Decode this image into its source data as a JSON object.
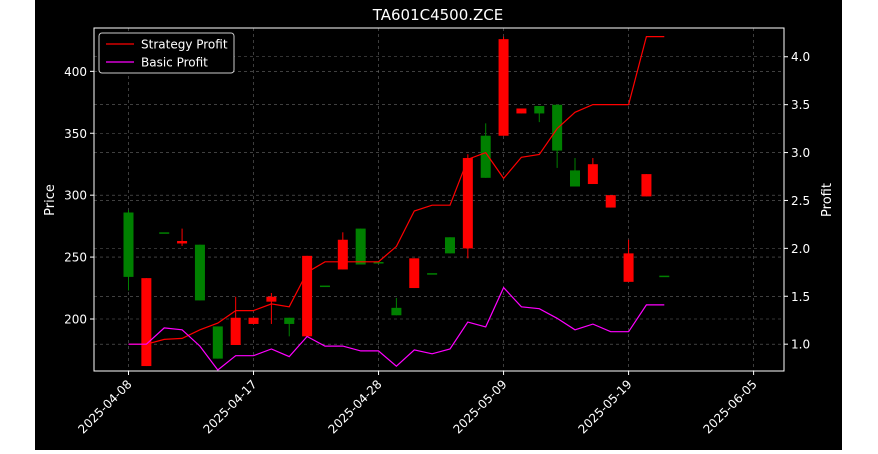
{
  "chart_data": {
    "type": "candlestick",
    "title": "TA601C4500.ZCE",
    "ylabel_left": "Price",
    "ylabel_right": "Profit",
    "ylim_left": [
      158,
      435
    ],
    "ylim_right": [
      0.72,
      4.3
    ],
    "yticks_left": [
      200,
      250,
      300,
      350,
      400
    ],
    "yticks_right": [
      1.0,
      1.5,
      2.0,
      2.5,
      3.0,
      3.5,
      4.0
    ],
    "xtick_labels": [
      "2025-04-08",
      "2025-04-17",
      "2025-04-28",
      "2025-05-09",
      "2025-05-19",
      "2025-06-05"
    ],
    "xtick_index": [
      0,
      7,
      14,
      21,
      28,
      35
    ],
    "grid": true,
    "legend": {
      "position": "top-left",
      "entries": [
        "Strategy Profit",
        "Basic Profit"
      ]
    },
    "colors": {
      "up": "#008000",
      "down": "#ff0000",
      "strategy": "#ff0000",
      "basic": "#ff00ff",
      "background": "#000000",
      "text": "#ffffff",
      "grid": "#808080"
    },
    "candles": [
      {
        "o": 234,
        "h": 288,
        "l": 223,
        "c": 286
      },
      {
        "o": 233,
        "h": 233,
        "l": 162,
        "c": 162
      },
      {
        "o": 270,
        "h": 270,
        "l": 270,
        "c": 270
      },
      {
        "o": 263,
        "h": 273,
        "l": 259,
        "c": 261
      },
      {
        "o": 215,
        "h": 260,
        "l": 215,
        "c": 260
      },
      {
        "o": 168,
        "h": 194,
        "l": 168,
        "c": 194
      },
      {
        "o": 201,
        "h": 218,
        "l": 179,
        "c": 179
      },
      {
        "o": 201,
        "h": 201,
        "l": 196,
        "c": 196
      },
      {
        "o": 218,
        "h": 221,
        "l": 196,
        "c": 214
      },
      {
        "o": 196,
        "h": 201,
        "l": 186,
        "c": 201
      },
      {
        "o": 251,
        "h": 251,
        "l": 186,
        "c": 186
      },
      {
        "o": 227,
        "h": 227,
        "l": 227,
        "c": 227
      },
      {
        "o": 264,
        "h": 270,
        "l": 240,
        "c": 240
      },
      {
        "o": 244,
        "h": 273,
        "l": 244,
        "c": 273
      },
      {
        "o": 246,
        "h": 246,
        "l": 246,
        "c": 246
      },
      {
        "o": 203,
        "h": 217,
        "l": 203,
        "c": 209
      },
      {
        "o": 249,
        "h": 249,
        "l": 225,
        "c": 225
      },
      {
        "o": 237,
        "h": 237,
        "l": 237,
        "c": 237
      },
      {
        "o": 253,
        "h": 266,
        "l": 253,
        "c": 266
      },
      {
        "o": 330,
        "h": 333,
        "l": 249,
        "c": 257
      },
      {
        "o": 314,
        "h": 358,
        "l": 314,
        "c": 348
      },
      {
        "o": 426,
        "h": 428,
        "l": 348,
        "c": 348
      },
      {
        "o": 370,
        "h": 370,
        "l": 366,
        "c": 366
      },
      {
        "o": 366,
        "h": 372,
        "l": 359,
        "c": 372
      },
      {
        "o": 336,
        "h": 373,
        "l": 322,
        "c": 373
      },
      {
        "o": 307,
        "h": 330,
        "l": 307,
        "c": 320
      },
      {
        "o": 325,
        "h": 330,
        "l": 309,
        "c": 309
      },
      {
        "o": 300,
        "h": 300,
        "l": 290,
        "c": 290
      },
      {
        "o": 253,
        "h": 264,
        "l": 230,
        "c": 230
      },
      {
        "o": 317,
        "h": 317,
        "l": 299,
        "c": 299
      },
      {
        "o": 235,
        "h": 235,
        "l": 235,
        "c": 235
      }
    ],
    "candle_index": [
      0,
      1,
      2,
      3,
      4,
      5,
      6,
      7,
      8,
      9,
      10,
      11,
      12,
      13,
      14,
      15,
      16,
      17,
      18,
      19,
      20,
      21,
      22,
      23,
      24,
      25,
      26,
      27,
      28,
      29,
      30
    ],
    "series": [
      {
        "name": "Strategy Profit",
        "x": [
          0,
          1,
          2,
          3,
          4,
          5,
          6,
          7,
          8,
          9,
          10,
          11,
          12,
          13,
          14,
          15,
          16,
          17,
          18,
          19,
          20,
          21,
          22,
          23,
          24,
          25,
          26,
          27,
          28,
          29,
          30
        ],
        "values": [
          1.0,
          1.0,
          1.05,
          1.06,
          1.15,
          1.22,
          1.35,
          1.35,
          1.42,
          1.39,
          1.75,
          1.86,
          1.86,
          1.86,
          1.86,
          2.02,
          2.39,
          2.45,
          2.45,
          2.93,
          3.0,
          2.73,
          2.95,
          2.98,
          3.25,
          3.42,
          3.5,
          3.5,
          3.5,
          4.21,
          4.21
        ]
      },
      {
        "name": "Basic Profit",
        "x": [
          0,
          1,
          2,
          3,
          4,
          5,
          6,
          7,
          8,
          9,
          10,
          11,
          12,
          13,
          14,
          15,
          16,
          17,
          18,
          19,
          20,
          21,
          22,
          23,
          24,
          25,
          26,
          27,
          28,
          29,
          30
        ],
        "values": [
          1.0,
          1.0,
          1.17,
          1.15,
          0.98,
          0.73,
          0.88,
          0.88,
          0.95,
          0.87,
          1.08,
          0.98,
          0.98,
          0.93,
          0.93,
          0.77,
          0.94,
          0.9,
          0.95,
          1.23,
          1.18,
          1.59,
          1.39,
          1.37,
          1.27,
          1.15,
          1.21,
          1.13,
          1.13,
          1.41,
          1.41
        ]
      }
    ]
  }
}
